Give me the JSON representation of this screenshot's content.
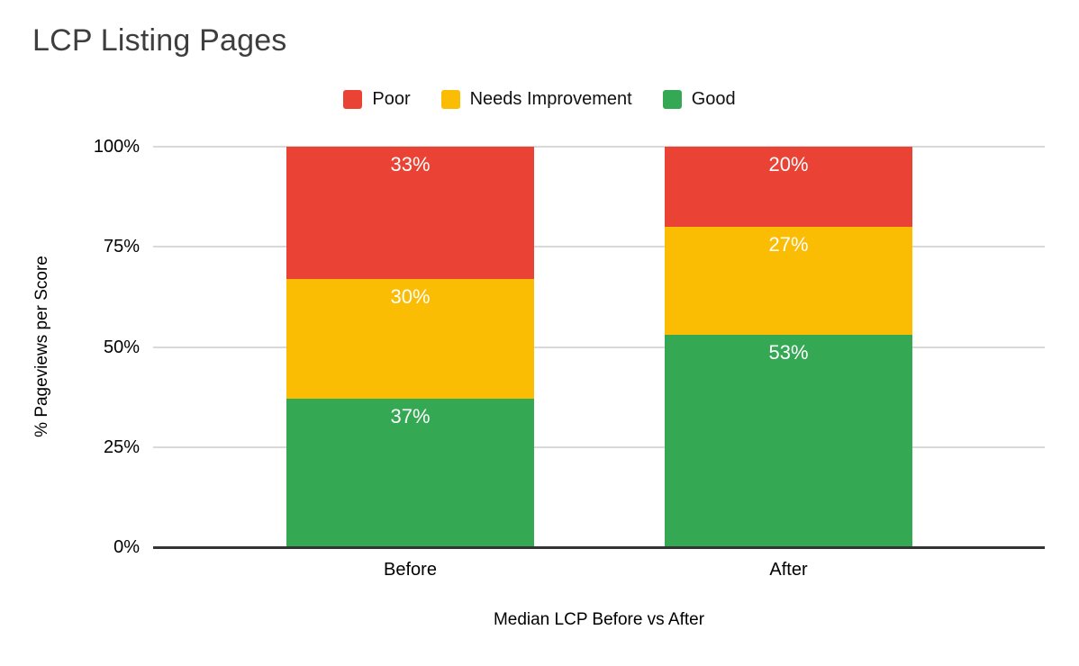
{
  "title": "LCP Listing Pages",
  "colors": {
    "poor": "#EA4335",
    "needs_improvement": "#FBBC04",
    "good": "#34A853",
    "gridline": "#D9D9D9",
    "axis_line": "#333333",
    "title_text": "#3E3E3E",
    "bar_label_text": "#FFFFFF"
  },
  "legend": {
    "items": [
      {
        "label": "Poor",
        "color": "#EA4335"
      },
      {
        "label": "Needs Improvement",
        "color": "#FBBC04"
      },
      {
        "label": "Good",
        "color": "#34A853"
      }
    ]
  },
  "chart_data": {
    "type": "bar",
    "stacked": true,
    "title": "LCP Listing Pages",
    "categories": [
      "Before",
      "After"
    ],
    "series": [
      {
        "name": "Poor",
        "color": "#EA4335",
        "values": [
          33,
          20
        ]
      },
      {
        "name": "Needs Improvement",
        "color": "#FBBC04",
        "values": [
          30,
          27
        ]
      },
      {
        "name": "Good",
        "color": "#34A853",
        "values": [
          37,
          53
        ]
      }
    ],
    "value_suffix": "%",
    "xlabel": "Median LCP Before vs After",
    "ylabel": "% Pageviews per Score",
    "yticks": [
      "0%",
      "25%",
      "50%",
      "75%",
      "100%"
    ],
    "ylim": [
      0,
      100
    ],
    "grid": "horizontal",
    "legend_position": "top-center",
    "bar_label_position": "inside-top"
  }
}
